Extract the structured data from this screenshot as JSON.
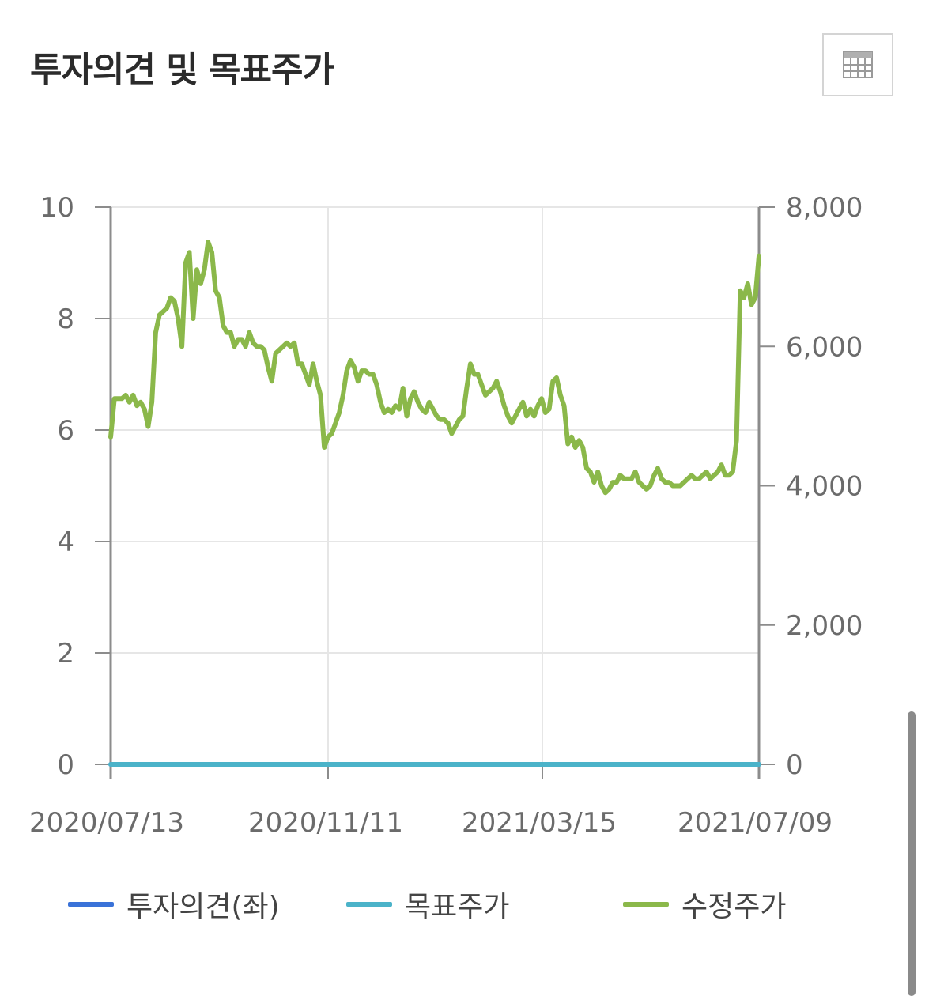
{
  "header": {
    "title": "투자의견 및 목표주가",
    "table_icon": "table-grid-icon"
  },
  "colors": {
    "opinion": "#3a72d8",
    "target": "#4bb3c9",
    "price": "#8bb84a",
    "grid": "#e6e6e6",
    "axis": "#8c8c8c"
  },
  "chart_data": {
    "type": "line",
    "title": "",
    "x_ticks": [
      "2020/07/13",
      "2020/11/11",
      "2021/03/15",
      "2021/07/09"
    ],
    "y_left": {
      "min": 0,
      "max": 10,
      "ticks": [
        "0",
        "2",
        "4",
        "6",
        "8",
        "10"
      ]
    },
    "y_right": {
      "min": 0,
      "max": 8000,
      "ticks": [
        "0",
        "2,000",
        "4,000",
        "6,000",
        "8,000"
      ]
    },
    "grid": true,
    "legend_position": "bottom",
    "series": [
      {
        "name": "투자의견(좌)",
        "axis": "left",
        "color": "#3a72d8",
        "values": [
          0,
          0
        ]
      },
      {
        "name": "목표주가",
        "axis": "left",
        "color": "#4bb3c9",
        "values": [
          0,
          0
        ]
      },
      {
        "name": "수정주가",
        "axis": "right",
        "color": "#8bb84a",
        "values": [
          4700,
          5250,
          5250,
          5250,
          5300,
          5200,
          5300,
          5150,
          5200,
          5100,
          4850,
          5200,
          6200,
          6450,
          6500,
          6550,
          6700,
          6650,
          6400,
          6000,
          7200,
          7350,
          6400,
          7100,
          6900,
          7100,
          7500,
          7350,
          6800,
          6700,
          6300,
          6200,
          6200,
          6000,
          6100,
          6100,
          6000,
          6200,
          6050,
          6000,
          6000,
          5950,
          5700,
          5500,
          5900,
          5950,
          6000,
          6050,
          6000,
          6050,
          5750,
          5750,
          5600,
          5450,
          5750,
          5500,
          5300,
          4550,
          4700,
          4750,
          4900,
          5050,
          5300,
          5650,
          5800,
          5700,
          5500,
          5650,
          5650,
          5600,
          5600,
          5450,
          5200,
          5050,
          5100,
          5050,
          5150,
          5100,
          5400,
          5000,
          5250,
          5350,
          5200,
          5100,
          5050,
          5200,
          5100,
          5000,
          4950,
          4950,
          4900,
          4750,
          4850,
          4950,
          5000,
          5400,
          5750,
          5600,
          5600,
          5450,
          5300,
          5350,
          5400,
          5500,
          5350,
          5150,
          5000,
          4900,
          5000,
          5100,
          5200,
          5000,
          5100,
          5000,
          5150,
          5250,
          5050,
          5100,
          5500,
          5550,
          5300,
          5150,
          4600,
          4700,
          4550,
          4650,
          4550,
          4250,
          4200,
          4050,
          4200,
          4000,
          3900,
          3950,
          4050,
          4050,
          4150,
          4100,
          4100,
          4100,
          4200,
          4050,
          4000,
          3950,
          4000,
          4150,
          4250,
          4100,
          4050,
          4050,
          4000,
          4000,
          4000,
          4050,
          4100,
          4150,
          4100,
          4100,
          4150,
          4200,
          4100,
          4150,
          4200,
          4300,
          4150,
          4150,
          4200,
          4650,
          6800,
          6700,
          6900,
          6600,
          6700,
          7300
        ]
      }
    ]
  },
  "legend": [
    {
      "label": "투자의견(좌)",
      "color": "#3a72d8"
    },
    {
      "label": "목표주가",
      "color": "#4bb3c9"
    },
    {
      "label": "수정주가",
      "color": "#8bb84a"
    }
  ]
}
